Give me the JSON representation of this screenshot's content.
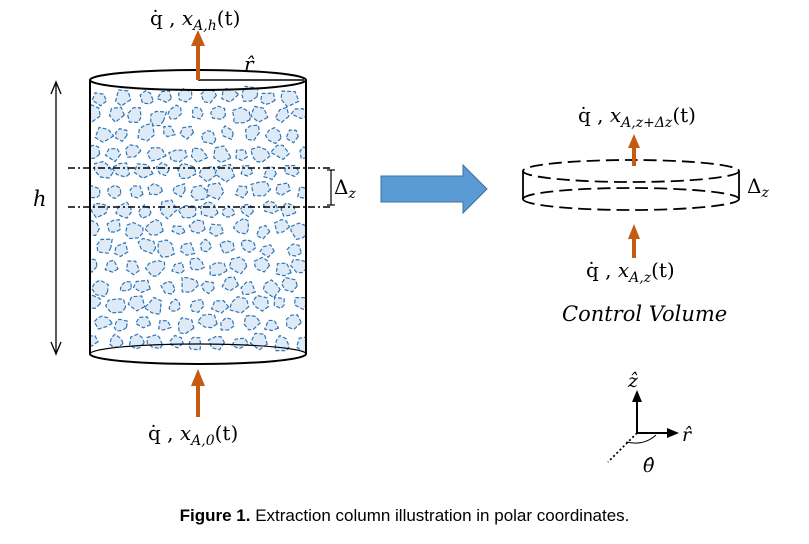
{
  "labels": {
    "top_flow": {
      "q": "q̇ , ",
      "x": "x",
      "sub": "A,h",
      "t": "(t)"
    },
    "bottom_flow": {
      "q": "q̇ , ",
      "x": "x",
      "sub": "A,0",
      "t": "(t)"
    },
    "cv_top_flow": {
      "q": "q̇ , ",
      "x": "x",
      "sub": "A,z+Δz",
      "t": "(t)"
    },
    "cv_bottom_flow": {
      "q": "q̇ , ",
      "x": "x",
      "sub": "A,z",
      "t": "(t)"
    },
    "r_hat_top": "r̂",
    "height": "h",
    "delta_column": {
      "d": "Δ",
      "sub": "z"
    },
    "delta_cv": {
      "d": "Δ",
      "sub": "z"
    },
    "control_volume": "Control Volume",
    "axis_z": "ẑ",
    "axis_r": "r̂",
    "axis_theta": "θ̂"
  },
  "caption": {
    "label": "Figure 1.",
    "text": " Extraction column illustration in polar coordinates."
  },
  "colors": {
    "flow_arrow": "#c55a11",
    "block_arrow": "#5b9bd5",
    "particle_fill": "#deebf7",
    "particle_stroke": "#2e75b6",
    "line": "#000000"
  }
}
